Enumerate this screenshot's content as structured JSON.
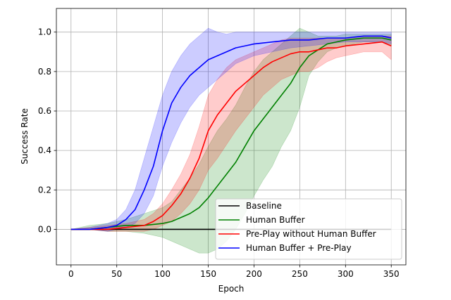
{
  "chart_data": {
    "type": "line",
    "title": "",
    "xlabel": "Epoch",
    "ylabel": "Success Rate",
    "xlim": [
      -16,
      366
    ],
    "ylim": [
      -0.18,
      1.12
    ],
    "xticks": [
      0,
      50,
      100,
      150,
      200,
      250,
      300,
      350
    ],
    "yticks": [
      0.0,
      0.2,
      0.4,
      0.6,
      0.8,
      1.0
    ],
    "ytick_labels": [
      "0.0",
      "0.2",
      "0.4",
      "0.6",
      "0.8",
      "1.0"
    ],
    "grid": true,
    "legend_position": "lower-right",
    "series": [
      {
        "name": "Baseline",
        "color": "#000000",
        "x": [
          0,
          350
        ],
        "mean": [
          0.0,
          0.0
        ],
        "lower": [
          0.0,
          0.0
        ],
        "upper": [
          0.0,
          0.0
        ]
      },
      {
        "name": "Human Buffer",
        "color": "#008000",
        "x": [
          0,
          20,
          40,
          60,
          80,
          100,
          110,
          120,
          130,
          140,
          150,
          160,
          170,
          180,
          190,
          200,
          210,
          220,
          230,
          240,
          250,
          260,
          270,
          280,
          290,
          300,
          320,
          340,
          350
        ],
        "mean": [
          0.0,
          0.0,
          0.01,
          0.02,
          0.02,
          0.03,
          0.04,
          0.06,
          0.08,
          0.11,
          0.16,
          0.22,
          0.28,
          0.34,
          0.42,
          0.5,
          0.56,
          0.62,
          0.68,
          0.74,
          0.82,
          0.88,
          0.91,
          0.94,
          0.95,
          0.96,
          0.97,
          0.97,
          0.96
        ],
        "lower": [
          0.0,
          0.0,
          -0.01,
          -0.01,
          -0.02,
          -0.04,
          -0.06,
          -0.08,
          -0.1,
          -0.12,
          -0.12,
          -0.1,
          -0.06,
          0.0,
          0.08,
          0.17,
          0.25,
          0.32,
          0.42,
          0.5,
          0.62,
          0.78,
          0.85,
          0.9,
          0.92,
          0.93,
          0.95,
          0.95,
          0.93
        ],
        "upper": [
          0.0,
          0.02,
          0.03,
          0.05,
          0.08,
          0.11,
          0.14,
          0.2,
          0.26,
          0.33,
          0.42,
          0.5,
          0.56,
          0.63,
          0.72,
          0.8,
          0.86,
          0.9,
          0.94,
          0.98,
          1.02,
          1.0,
          0.98,
          0.98,
          0.98,
          0.99,
          0.99,
          0.99,
          0.99
        ]
      },
      {
        "name": "Pre-Play without Human Buffer",
        "color": "#ff0000",
        "x": [
          0,
          20,
          40,
          60,
          80,
          90,
          100,
          110,
          120,
          130,
          140,
          150,
          160,
          170,
          180,
          190,
          200,
          210,
          220,
          230,
          240,
          250,
          260,
          270,
          280,
          290,
          300,
          320,
          340,
          350
        ],
        "mean": [
          0.0,
          0.0,
          0.0,
          0.01,
          0.02,
          0.04,
          0.07,
          0.12,
          0.18,
          0.26,
          0.36,
          0.5,
          0.58,
          0.64,
          0.7,
          0.74,
          0.78,
          0.82,
          0.85,
          0.87,
          0.89,
          0.9,
          0.9,
          0.91,
          0.92,
          0.92,
          0.93,
          0.94,
          0.95,
          0.93
        ],
        "lower": [
          0.0,
          0.0,
          -0.01,
          -0.01,
          -0.01,
          0.0,
          0.02,
          0.04,
          0.08,
          0.13,
          0.2,
          0.3,
          0.36,
          0.43,
          0.5,
          0.56,
          0.62,
          0.68,
          0.72,
          0.76,
          0.78,
          0.8,
          0.8,
          0.82,
          0.85,
          0.87,
          0.88,
          0.9,
          0.9,
          0.86
        ],
        "upper": [
          0.0,
          0.01,
          0.02,
          0.03,
          0.05,
          0.08,
          0.13,
          0.2,
          0.28,
          0.38,
          0.52,
          0.68,
          0.76,
          0.82,
          0.86,
          0.88,
          0.9,
          0.92,
          0.94,
          0.96,
          0.97,
          0.97,
          0.97,
          0.97,
          0.97,
          0.97,
          0.97,
          0.98,
          0.98,
          0.98
        ]
      },
      {
        "name": "Human Buffer + Pre-Play",
        "color": "#0000ff",
        "x": [
          0,
          20,
          40,
          50,
          60,
          70,
          80,
          90,
          100,
          110,
          120,
          130,
          140,
          150,
          160,
          170,
          180,
          190,
          200,
          220,
          240,
          260,
          280,
          300,
          320,
          340,
          350
        ],
        "mean": [
          0.0,
          0.0,
          0.01,
          0.02,
          0.05,
          0.1,
          0.2,
          0.32,
          0.5,
          0.64,
          0.72,
          0.78,
          0.82,
          0.86,
          0.88,
          0.9,
          0.92,
          0.93,
          0.94,
          0.95,
          0.96,
          0.96,
          0.97,
          0.97,
          0.98,
          0.98,
          0.97
        ],
        "lower": [
          0.0,
          0.0,
          -0.01,
          0.0,
          0.01,
          0.03,
          0.08,
          0.17,
          0.32,
          0.44,
          0.54,
          0.62,
          0.68,
          0.72,
          0.76,
          0.8,
          0.84,
          0.86,
          0.88,
          0.9,
          0.92,
          0.93,
          0.94,
          0.95,
          0.95,
          0.95,
          0.94
        ],
        "upper": [
          0.0,
          0.01,
          0.03,
          0.05,
          0.1,
          0.2,
          0.36,
          0.52,
          0.68,
          0.8,
          0.88,
          0.94,
          0.98,
          1.02,
          1.0,
          0.99,
          1.0,
          1.0,
          1.0,
          1.0,
          1.0,
          1.0,
          1.0,
          1.0,
          1.0,
          1.0,
          1.0
        ]
      }
    ]
  }
}
